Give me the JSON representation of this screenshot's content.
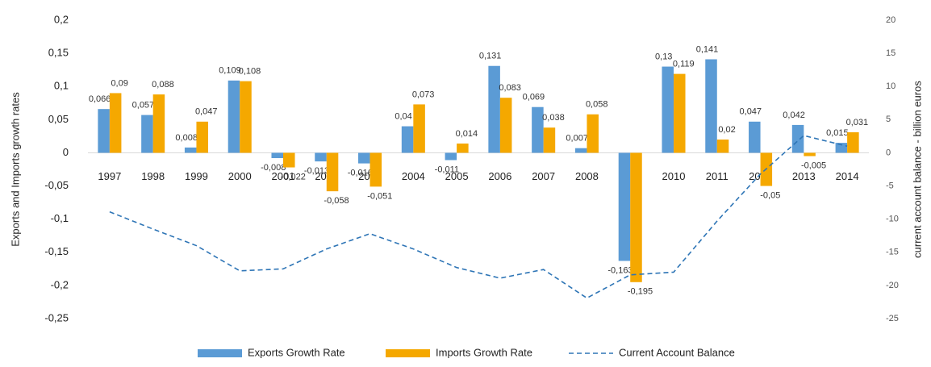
{
  "chart_data": {
    "type": "bar",
    "categories": [
      "1997",
      "1998",
      "1999",
      "2000",
      "2001",
      "2002",
      "2003",
      "2004",
      "2005",
      "2006",
      "2007",
      "2008",
      "2009",
      "2010",
      "2011",
      "2012",
      "2013",
      "2014"
    ],
    "series": [
      {
        "name": "Exports Growth Rate",
        "color": "#5b9bd5",
        "type": "bar",
        "values": [
          0.066,
          0.057,
          0.008,
          0.109,
          -0.008,
          -0.013,
          -0.016,
          0.04,
          -0.011,
          0.131,
          0.069,
          0.007,
          -0.163,
          0.13,
          0.141,
          0.047,
          0.042,
          0.015
        ],
        "value_labels": [
          "0,066",
          "0,057",
          "0,008",
          "0,109",
          "-0,008",
          "-0,013",
          "-0,016",
          "0,04",
          "-0,011",
          "0,131",
          "0,069",
          "0,007",
          "-0,163",
          "0,13",
          "0,141",
          "0,047",
          "0,042",
          "0,015"
        ]
      },
      {
        "name": "Imports Growth Rate",
        "color": "#f5a800",
        "type": "bar",
        "values": [
          0.09,
          0.088,
          0.047,
          0.108,
          -0.022,
          -0.058,
          -0.051,
          0.073,
          0.014,
          0.083,
          0.038,
          0.058,
          -0.195,
          0.119,
          0.02,
          -0.05,
          -0.005,
          0.031
        ],
        "value_labels": [
          "0,09",
          "0,088",
          "0,047",
          "0,108",
          "-0,022",
          "-0,058",
          "-0,051",
          "0,073",
          "0,014",
          "0,083",
          "0,038",
          "0,058",
          "-0,195",
          "0,119",
          "0,02",
          "-0,05",
          "-0,005",
          "0,031"
        ]
      },
      {
        "name": "Current Account Balance",
        "color": "#2e75b6",
        "type": "line",
        "axis": "y2",
        "dashed": true,
        "values": [
          -8.9,
          -11.5,
          -14,
          -17.8,
          -17.5,
          -14.5,
          -12.2,
          -14.5,
          -17.3,
          -18.9,
          -17.6,
          -21.9,
          -18.4,
          -18,
          -10.3,
          -3.2,
          2.6,
          1
        ]
      }
    ],
    "y_label": "Exports and Imports growth rates",
    "y2_label": "current account balance - billion euros",
    "ylim": [
      -0.25,
      0.2
    ],
    "yticks": [
      {
        "value": 0.2,
        "label": "0,2"
      },
      {
        "value": 0.15,
        "label": "0,15"
      },
      {
        "value": 0.1,
        "label": "0,1"
      },
      {
        "value": 0.05,
        "label": "0,05"
      },
      0,
      {
        "value": -0.05,
        "label": "-0,05"
      },
      {
        "value": -0.1,
        "label": "-0,1"
      },
      {
        "value": -0.15,
        "label": "-0,15"
      },
      {
        "value": -0.2,
        "label": "-0,2"
      },
      {
        "value": -0.25,
        "label": "-0,25"
      }
    ],
    "y2lim": [
      -25,
      20
    ],
    "y2ticks": [
      20,
      15,
      10,
      5,
      0,
      -5,
      -10,
      -15,
      -20,
      -25
    ],
    "legend": "bottom"
  }
}
